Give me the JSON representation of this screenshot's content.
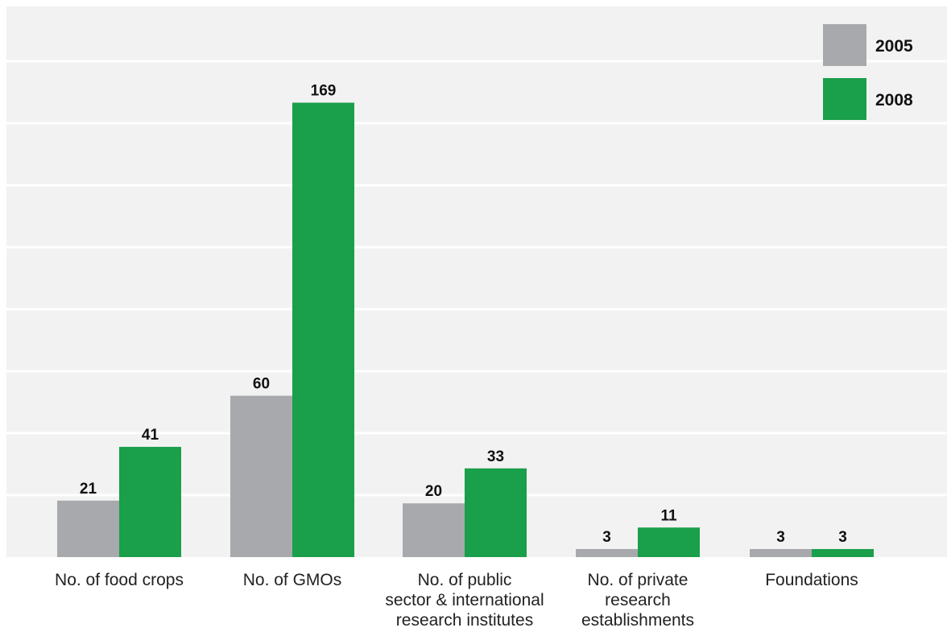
{
  "chart_data": {
    "type": "bar",
    "categories": [
      [
        "No. of food crops"
      ],
      [
        "No. of GMOs"
      ],
      [
        "No. of public",
        "sector & international",
        "research institutes"
      ],
      [
        "No. of private",
        "research",
        "establishments"
      ],
      [
        "Foundations"
      ]
    ],
    "series": [
      {
        "name": "2005",
        "color": "#a7a9ac",
        "values": [
          21,
          60,
          20,
          3,
          3
        ]
      },
      {
        "name": "2008",
        "color": "#1a9f4a",
        "values": [
          41,
          169,
          33,
          11,
          3
        ]
      }
    ],
    "ylim": [
      0,
      180
    ],
    "grid": true,
    "legend": "top-right",
    "background": "#f2f2f2",
    "grid_color": "#ffffff"
  }
}
